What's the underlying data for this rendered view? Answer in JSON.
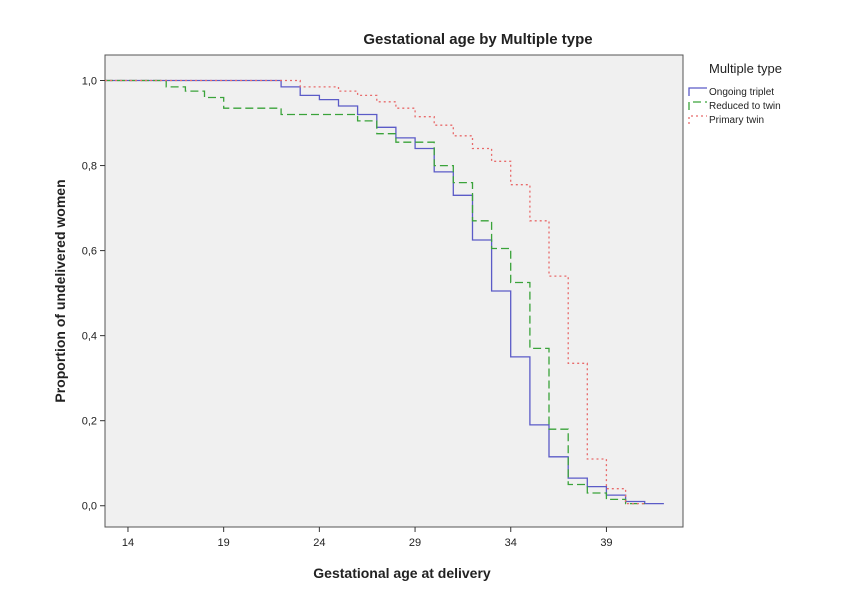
{
  "chart_data": {
    "type": "line",
    "title": "Gestational age by Multiple type",
    "xlabel": "Gestational age at delivery",
    "ylabel": "Proportion of undelivered women",
    "xlim": [
      12.8,
      43.0
    ],
    "ylim": [
      -0.05,
      1.06
    ],
    "xticks": [
      14,
      19,
      24,
      29,
      34,
      39
    ],
    "yticks": [
      0.0,
      0.2,
      0.4,
      0.6,
      0.8,
      1.0
    ],
    "ytick_labels": [
      "0,0",
      "0,2",
      "0,4",
      "0,6",
      "0,8",
      "1,0"
    ],
    "grid": false,
    "legend": {
      "title": "Multiple type",
      "position": "top-right"
    },
    "series": [
      {
        "name": "Ongoing triplet",
        "color": "#5b5bc7",
        "dash": "solid",
        "x": [
          12.8,
          22.0,
          22.0,
          23.0,
          23.0,
          24.0,
          24.0,
          25.0,
          25.0,
          26.0,
          26.0,
          27.0,
          27.0,
          28.0,
          28.0,
          29.0,
          29.0,
          30.0,
          30.0,
          31.0,
          31.0,
          32.0,
          32.0,
          33.0,
          33.0,
          34.0,
          34.0,
          35.0,
          35.0,
          36.0,
          36.0,
          37.0,
          37.0,
          38.0,
          38.0,
          39.0,
          39.0,
          40.0,
          40.0,
          41.0,
          41.0,
          42.0
        ],
        "y": [
          1.0,
          1.0,
          0.985,
          0.985,
          0.965,
          0.965,
          0.955,
          0.955,
          0.94,
          0.94,
          0.92,
          0.92,
          0.89,
          0.89,
          0.865,
          0.865,
          0.84,
          0.84,
          0.785,
          0.785,
          0.73,
          0.73,
          0.625,
          0.625,
          0.505,
          0.505,
          0.35,
          0.35,
          0.19,
          0.19,
          0.115,
          0.115,
          0.065,
          0.065,
          0.045,
          0.045,
          0.025,
          0.025,
          0.01,
          0.01,
          0.005,
          0.005
        ]
      },
      {
        "name": "Reduced to twin",
        "color": "#3aa33a",
        "dash": "8,4",
        "x": [
          12.8,
          16.0,
          16.0,
          17.0,
          17.0,
          18.0,
          18.0,
          19.0,
          19.0,
          22.0,
          22.0,
          26.0,
          26.0,
          27.0,
          27.0,
          28.0,
          28.0,
          30.0,
          30.0,
          31.0,
          31.0,
          32.0,
          32.0,
          33.0,
          33.0,
          34.0,
          34.0,
          35.0,
          35.0,
          36.0,
          36.0,
          37.0,
          37.0,
          38.0,
          38.0,
          39.0,
          39.0,
          40.0,
          40.0,
          41.0
        ],
        "y": [
          1.0,
          1.0,
          0.985,
          0.985,
          0.975,
          0.975,
          0.96,
          0.96,
          0.935,
          0.935,
          0.92,
          0.92,
          0.905,
          0.905,
          0.875,
          0.875,
          0.855,
          0.855,
          0.8,
          0.8,
          0.76,
          0.76,
          0.67,
          0.67,
          0.605,
          0.605,
          0.525,
          0.525,
          0.37,
          0.37,
          0.18,
          0.18,
          0.05,
          0.05,
          0.03,
          0.03,
          0.015,
          0.015,
          0.005,
          0.005
        ]
      },
      {
        "name": "Primary twin",
        "color": "#e86a6a",
        "dash": "2,3",
        "x": [
          12.8,
          23.0,
          23.0,
          25.0,
          25.0,
          26.0,
          26.0,
          27.0,
          27.0,
          28.0,
          28.0,
          29.0,
          29.0,
          30.0,
          30.0,
          31.0,
          31.0,
          32.0,
          32.0,
          33.0,
          33.0,
          34.0,
          34.0,
          35.0,
          35.0,
          36.0,
          36.0,
          37.0,
          37.0,
          38.0,
          38.0,
          39.0,
          39.0,
          40.0,
          40.0,
          41.0
        ],
        "y": [
          1.0,
          1.0,
          0.985,
          0.985,
          0.975,
          0.975,
          0.965,
          0.965,
          0.95,
          0.95,
          0.935,
          0.935,
          0.915,
          0.915,
          0.895,
          0.895,
          0.87,
          0.87,
          0.84,
          0.84,
          0.81,
          0.81,
          0.755,
          0.755,
          0.67,
          0.67,
          0.54,
          0.54,
          0.335,
          0.335,
          0.11,
          0.11,
          0.04,
          0.04,
          0.005,
          0.005
        ]
      }
    ]
  }
}
